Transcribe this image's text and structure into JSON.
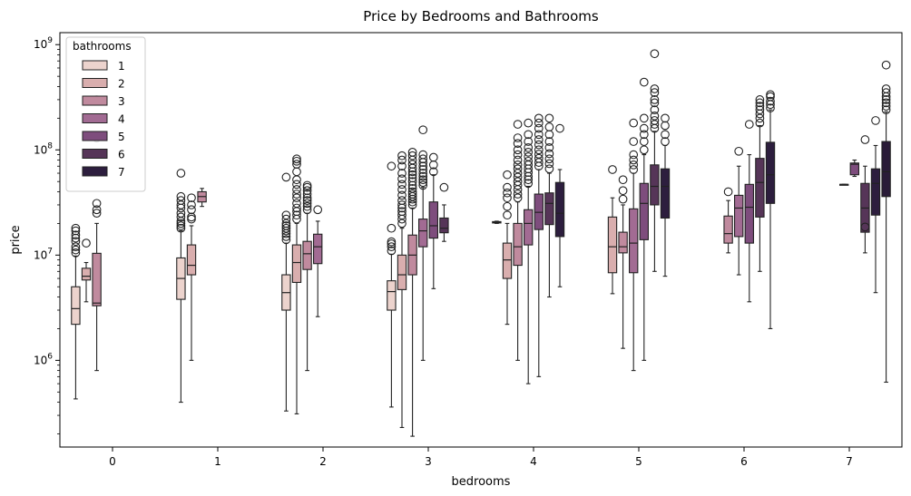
{
  "chart_data": {
    "type": "box",
    "title": "Price by Bedrooms and Bathrooms",
    "xlabel": "bedrooms",
    "ylabel": "price",
    "y_scale": "log",
    "ylim": [
      150000,
      1300000000
    ],
    "categories": [
      "0",
      "1",
      "2",
      "3",
      "4",
      "5",
      "6",
      "7"
    ],
    "y_ticks": [
      {
        "value": 1000000,
        "base": "10",
        "exp": "6"
      },
      {
        "value": 10000000,
        "base": "10",
        "exp": "7"
      },
      {
        "value": 100000000,
        "base": "10",
        "exp": "8"
      },
      {
        "value": 1000000000,
        "base": "10",
        "exp": "9"
      }
    ],
    "legend": {
      "title": "bathrooms",
      "position": "top-left",
      "entries": [
        {
          "label": "1",
          "color": "#ecd3cd"
        },
        {
          "label": "2",
          "color": "#d9aeae"
        },
        {
          "label": "3",
          "color": "#c08a9e"
        },
        {
          "label": "4",
          "color": "#a26b93"
        },
        {
          "label": "5",
          "color": "#7e4d7d"
        },
        {
          "label": "6",
          "color": "#563558"
        },
        {
          "label": "7",
          "color": "#2d1e3e"
        }
      ]
    },
    "boxes": [
      {
        "bedrooms": "0",
        "bathrooms": "1",
        "min": 430000,
        "q1": 2200000,
        "median": 3100000,
        "q3": 5000000,
        "max": 9800000,
        "outliers": [
          10500000,
          11200000,
          12000000,
          13500000,
          14500000,
          15500000,
          17000000,
          18000000
        ]
      },
      {
        "bedrooms": "0",
        "bathrooms": "2",
        "min": 3600000,
        "q1": 5800000,
        "median": 6300000,
        "q3": 7500000,
        "max": 8500000,
        "outliers": [
          13000000
        ]
      },
      {
        "bedrooms": "0",
        "bathrooms": "3",
        "min": 800000,
        "q1": 3300000,
        "median": 3500000,
        "q3": 10400000,
        "max": 20000000,
        "outliers": [
          25000000,
          27000000,
          31000000,
          130000000,
          300000000
        ]
      },
      {
        "bedrooms": "1",
        "bathrooms": "1",
        "min": 400000,
        "q1": 3800000,
        "median": 6000000,
        "q3": 9400000,
        "max": 17000000,
        "outliers": [
          18000000,
          19000000,
          20000000,
          21000000,
          23000000,
          25000000,
          28000000,
          30000000,
          33000000,
          36000000,
          60000000
        ]
      },
      {
        "bedrooms": "1",
        "bathrooms": "2",
        "min": 1000000,
        "q1": 6500000,
        "median": 8000000,
        "q3": 12500000,
        "max": 19000000,
        "outliers": [
          22000000,
          23000000,
          27000000,
          30000000,
          35000000
        ]
      },
      {
        "bedrooms": "1",
        "bathrooms": "3",
        "min": 29000000,
        "q1": 32000000,
        "median": 36000000,
        "q3": 40000000,
        "max": 43000000,
        "outliers": []
      },
      {
        "bedrooms": "2",
        "bathrooms": "1",
        "min": 330000,
        "q1": 3000000,
        "median": 4400000,
        "q3": 6500000,
        "max": 13000000,
        "outliers": [
          14000000,
          15000000,
          16000000,
          17000000,
          18000000,
          19000000,
          20000000,
          22000000,
          24000000,
          55000000
        ]
      },
      {
        "bedrooms": "2",
        "bathrooms": "2",
        "min": 310000,
        "q1": 5500000,
        "median": 8500000,
        "q3": 12500000,
        "max": 20000000,
        "outliers": [
          22000000,
          24000000,
          26000000,
          28000000,
          31000000,
          35000000,
          38000000,
          42000000,
          47000000,
          52000000,
          62000000,
          73000000,
          78000000,
          82000000
        ]
      },
      {
        "bedrooms": "2",
        "bathrooms": "3",
        "min": 800000,
        "q1": 7300000,
        "median": 10300000,
        "q3": 13500000,
        "max": 25000000,
        "outliers": [
          27000000,
          29000000,
          31000000,
          33000000,
          35000000,
          38000000,
          41000000,
          44000000,
          46000000
        ]
      },
      {
        "bedrooms": "2",
        "bathrooms": "4",
        "min": 2600000,
        "q1": 8300000,
        "median": 12000000,
        "q3": 15800000,
        "max": 21000000,
        "outliers": [
          27000000
        ]
      },
      {
        "bedrooms": "3",
        "bathrooms": "1",
        "min": 360000,
        "q1": 3000000,
        "median": 4500000,
        "q3": 5700000,
        "max": 10200000,
        "outliers": [
          11000000,
          12000000,
          12800000,
          13400000,
          18000000,
          70000000
        ]
      },
      {
        "bedrooms": "3",
        "bathrooms": "2",
        "min": 230000,
        "q1": 4700000,
        "median": 6500000,
        "q3": 10000000,
        "max": 18000000,
        "outliers": [
          20000000,
          22000000,
          24000000,
          26000000,
          28000000,
          30000000,
          33000000,
          37000000,
          42000000,
          47000000,
          53000000,
          60000000,
          70000000,
          80000000,
          88000000
        ]
      },
      {
        "bedrooms": "3",
        "bathrooms": "3",
        "min": 190000,
        "q1": 6500000,
        "median": 10000000,
        "q3": 15500000,
        "max": 28000000,
        "outliers": [
          30000000,
          32000000,
          34000000,
          36000000,
          38000000,
          40000000,
          43000000,
          46000000,
          50000000,
          54000000,
          58000000,
          62000000,
          67000000,
          73000000,
          80000000,
          88000000,
          95000000
        ]
      },
      {
        "bedrooms": "3",
        "bathrooms": "4",
        "min": 1000000,
        "q1": 12000000,
        "median": 17000000,
        "q3": 22000000,
        "max": 44000000,
        "outliers": [
          46000000,
          49000000,
          52000000,
          56000000,
          60000000,
          65000000,
          70000000,
          76000000,
          82000000,
          90000000,
          155000000
        ]
      },
      {
        "bedrooms": "3",
        "bathrooms": "5",
        "min": 4800000,
        "q1": 14500000,
        "median": 19000000,
        "q3": 32000000,
        "max": 58000000,
        "outliers": [
          62000000,
          72000000,
          85000000
        ]
      },
      {
        "bedrooms": "3",
        "bathrooms": "6",
        "min": 13500000,
        "q1": 16300000,
        "median": 18000000,
        "q3": 22500000,
        "max": 30000000,
        "outliers": [
          44000000
        ]
      },
      {
        "bedrooms": "4",
        "bathrooms": "1",
        "min": 20000000,
        "q1": 20200000,
        "median": 20500000,
        "q3": 20800000,
        "max": 21000000,
        "outliers": []
      },
      {
        "bedrooms": "4",
        "bathrooms": "2",
        "min": 2200000,
        "q1": 6000000,
        "median": 9000000,
        "q3": 13000000,
        "max": 20000000,
        "outliers": [
          24000000,
          29000000,
          35000000,
          39000000,
          44000000,
          58000000
        ]
      },
      {
        "bedrooms": "4",
        "bathrooms": "3",
        "min": 1000000,
        "q1": 8000000,
        "median": 12000000,
        "q3": 20000000,
        "max": 32000000,
        "outliers": [
          35000000,
          38000000,
          42000000,
          46000000,
          50000000,
          55000000,
          60000000,
          66000000,
          72000000,
          80000000,
          90000000,
          100000000,
          115000000,
          130000000,
          175000000
        ]
      },
      {
        "bedrooms": "4",
        "bathrooms": "4",
        "min": 600000,
        "q1": 12500000,
        "median": 20000000,
        "q3": 27000000,
        "max": 45000000,
        "outliers": [
          48000000,
          52000000,
          56000000,
          61000000,
          66000000,
          72000000,
          78000000,
          86000000,
          95000000,
          105000000,
          120000000,
          140000000,
          180000000
        ]
      },
      {
        "bedrooms": "4",
        "bathrooms": "5",
        "min": 700000,
        "q1": 17500000,
        "median": 25500000,
        "q3": 38000000,
        "max": 65000000,
        "outliers": [
          70000000,
          76000000,
          83000000,
          91000000,
          100000000,
          112000000,
          125000000,
          140000000,
          160000000,
          180000000,
          200000000
        ]
      },
      {
        "bedrooms": "4",
        "bathrooms": "6",
        "min": 4000000,
        "q1": 19500000,
        "median": 31000000,
        "q3": 39000000,
        "max": 60000000,
        "outliers": [
          66000000,
          74000000,
          82000000,
          92000000,
          105000000,
          120000000,
          140000000,
          165000000,
          200000000
        ]
      },
      {
        "bedrooms": "4",
        "bathrooms": "7",
        "min": 5000000,
        "q1": 15000000,
        "median": 25000000,
        "q3": 49000000,
        "max": 65000000,
        "outliers": [
          160000000
        ]
      },
      {
        "bedrooms": "5",
        "bathrooms": "2",
        "min": 4300000,
        "q1": 6800000,
        "median": 12000000,
        "q3": 23000000,
        "max": 35000000,
        "outliers": [
          65000000
        ]
      },
      {
        "bedrooms": "5",
        "bathrooms": "3",
        "min": 1300000,
        "q1": 10500000,
        "median": 12000000,
        "q3": 16500000,
        "max": 30000000,
        "outliers": [
          34000000,
          41000000,
          52000000
        ]
      },
      {
        "bedrooms": "5",
        "bathrooms": "4",
        "min": 800000,
        "q1": 6800000,
        "median": 13000000,
        "q3": 27500000,
        "max": 60000000,
        "outliers": [
          65000000,
          72000000,
          80000000,
          90000000,
          120000000,
          180000000
        ]
      },
      {
        "bedrooms": "5",
        "bathrooms": "5",
        "min": 1000000,
        "q1": 14000000,
        "median": 31000000,
        "q3": 48000000,
        "max": 90000000,
        "outliers": [
          100000000,
          120000000,
          140000000,
          160000000,
          200000000,
          440000000
        ]
      },
      {
        "bedrooms": "5",
        "bathrooms": "6",
        "min": 7000000,
        "q1": 30000000,
        "median": 45000000,
        "q3": 72000000,
        "max": 150000000,
        "outliers": [
          160000000,
          175000000,
          190000000,
          210000000,
          240000000,
          280000000,
          300000000,
          350000000,
          380000000,
          820000000
        ]
      },
      {
        "bedrooms": "5",
        "bathrooms": "7",
        "min": 6300000,
        "q1": 22500000,
        "median": 45000000,
        "q3": 66000000,
        "max": 110000000,
        "outliers": [
          120000000,
          140000000,
          170000000,
          200000000
        ]
      },
      {
        "bedrooms": "6",
        "bathrooms": "3",
        "min": 10500000,
        "q1": 13000000,
        "median": 16000000,
        "q3": 23500000,
        "max": 33000000,
        "outliers": [
          40000000
        ]
      },
      {
        "bedrooms": "6",
        "bathrooms": "4",
        "min": 6500000,
        "q1": 15000000,
        "median": 28000000,
        "q3": 37000000,
        "max": 70000000,
        "outliers": [
          97000000
        ]
      },
      {
        "bedrooms": "6",
        "bathrooms": "5",
        "min": 3600000,
        "q1": 13000000,
        "median": 28500000,
        "q3": 47000000,
        "max": 90000000,
        "outliers": [
          175000000
        ]
      },
      {
        "bedrooms": "6",
        "bathrooms": "6",
        "min": 7000000,
        "q1": 23000000,
        "median": 49000000,
        "q3": 83000000,
        "max": 170000000,
        "outliers": [
          180000000,
          200000000,
          220000000,
          240000000,
          260000000,
          280000000,
          300000000
        ]
      },
      {
        "bedrooms": "6",
        "bathrooms": "7",
        "min": 2000000,
        "q1": 31000000,
        "median": 58000000,
        "q3": 118000000,
        "max": 240000000,
        "outliers": [
          250000000,
          270000000,
          290000000,
          320000000,
          335000000
        ]
      },
      {
        "bedrooms": "7",
        "bathrooms": "4",
        "min": 47000000,
        "q1": 47000000,
        "median": 47000000,
        "q3": 47000000,
        "max": 47000000,
        "outliers": []
      },
      {
        "bedrooms": "7",
        "bathrooms": "5",
        "min": 56000000,
        "q1": 58000000,
        "median": 73000000,
        "q3": 75000000,
        "max": 80000000,
        "outliers": []
      },
      {
        "bedrooms": "7",
        "bathrooms": "6",
        "min": 10500000,
        "q1": 16500000,
        "median": 28000000,
        "q3": 48000000,
        "max": 70000000,
        "outliers": [
          18500000,
          125000000
        ]
      },
      {
        "bedrooms": "7",
        "bathrooms": "7",
        "min": 4400000,
        "q1": 24000000,
        "median": 48000000,
        "q3": 66000000,
        "max": 110000000,
        "outliers": [
          190000000
        ]
      },
      {
        "bedrooms": "7",
        "bathrooms": "8",
        "min": 620000,
        "q1": 36000000,
        "median": 62000000,
        "q3": 120000000,
        "max": 230000000,
        "outliers": [
          240000000,
          260000000,
          280000000,
          300000000,
          320000000,
          350000000,
          380000000,
          640000000
        ]
      }
    ]
  }
}
